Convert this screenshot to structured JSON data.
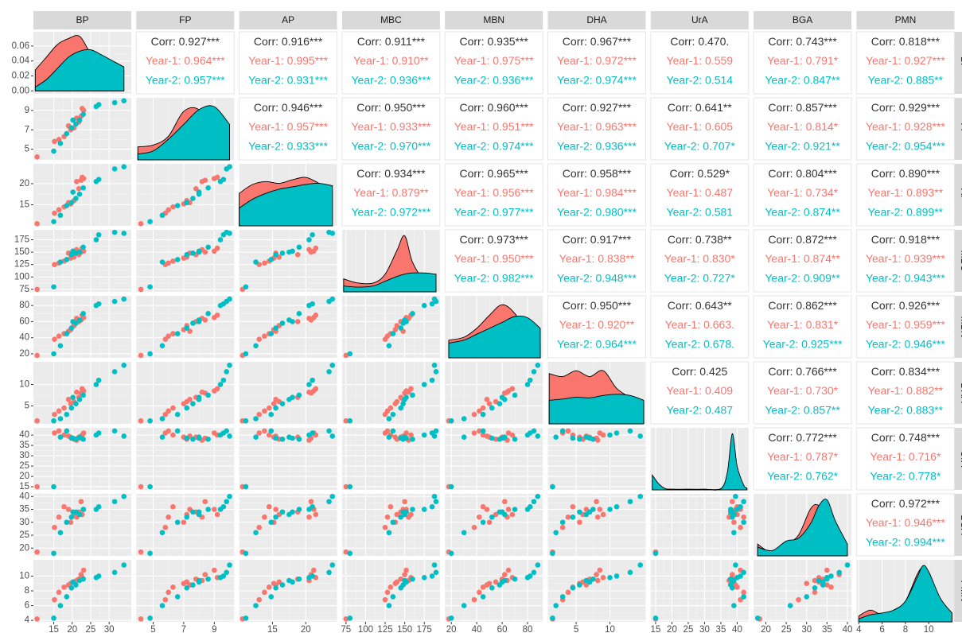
{
  "chart_data": {
    "type": "pairs",
    "colors": [
      "#F8766D",
      "#00BFC4"
    ],
    "corr_color": "#333333",
    "variables": [
      {
        "name": "BP",
        "lim": [
          9.5,
          36
        ],
        "ticks": [
          15,
          20,
          25,
          30
        ],
        "values": [
          [
            10.5,
            15.2,
            16.4,
            17.8,
            19.6,
            20.5,
            21.8,
            22.4,
            23.1,
            22.7,
            21.2,
            19.0
          ],
          [
            15.0,
            16.8,
            18.5,
            19.8,
            21.0,
            22.0,
            23.0,
            26.5,
            27.2,
            31.5,
            34.0,
            20.2
          ]
        ],
        "density": {
          "x": [
            10,
            13,
            16,
            19,
            22,
            25,
            28,
            31,
            34
          ],
          "ylim": [
            -0.004,
            0.079
          ],
          "yticks": [
            {
              "value": 0,
              "label": "0.00"
            },
            {
              "value": 0.02,
              "label": "0.02"
            },
            {
              "value": 0.04,
              "label": "0.04"
            },
            {
              "value": 0.06,
              "label": "0.06"
            }
          ],
          "values": [
            [
              0.028,
              0.045,
              0.062,
              0.07,
              0.073,
              0.05,
              0.035,
              0.03,
              0.028
            ],
            [
              0.005,
              0.015,
              0.03,
              0.045,
              0.053,
              0.055,
              0.048,
              0.04,
              0.032
            ]
          ]
        }
      },
      {
        "name": "FP",
        "lim": [
          3.9,
          10.3
        ],
        "ticks": [
          5,
          7,
          9
        ],
        "values": [
          [
            4.2,
            5.8,
            6.0,
            6.3,
            7.0,
            7.2,
            7.8,
            8.4,
            9.0,
            9.2,
            8.2,
            7.4
          ],
          [
            4.8,
            5.6,
            6.6,
            7.2,
            7.6,
            8.0,
            8.6,
            9.4,
            9.6,
            9.8,
            10.0,
            8.0
          ]
        ],
        "density": {
          "x": [
            4,
            5,
            6,
            7,
            8,
            9,
            10
          ],
          "ylim": [
            0,
            1.05
          ],
          "values": [
            [
              0.22,
              0.25,
              0.4,
              0.82,
              0.85,
              0.5,
              0.3
            ],
            [
              0.1,
              0.15,
              0.35,
              0.6,
              0.85,
              0.9,
              0.6
            ]
          ]
        }
      },
      {
        "name": "AP",
        "lim": [
          10,
          24.7
        ],
        "ticks": [
          15,
          20
        ],
        "values": [
          [
            10.5,
            13.0,
            13.8,
            14.5,
            15.2,
            16.0,
            18.8,
            20.8,
            21.2,
            21.5,
            20.5,
            15.5
          ],
          [
            11.0,
            12.5,
            14.8,
            15.5,
            16.5,
            17.5,
            19.0,
            20.5,
            21.0,
            23.5,
            24.0,
            18.0
          ]
        ],
        "density": {
          "x": [
            10,
            12,
            14,
            16,
            18,
            20,
            22,
            24
          ],
          "ylim": [
            0,
            1.05
          ],
          "values": [
            [
              0.55,
              0.7,
              0.75,
              0.72,
              0.78,
              0.82,
              0.72,
              0.6
            ],
            [
              0.3,
              0.45,
              0.55,
              0.62,
              0.66,
              0.7,
              0.72,
              0.68
            ]
          ]
        }
      },
      {
        "name": "MBC",
        "lim": [
          70,
          195
        ],
        "ticks": [
          75,
          100,
          125,
          150,
          175
        ],
        "values": [
          [
            75,
            125,
            128,
            132,
            138,
            140,
            145,
            150,
            152,
            158,
            155,
            148
          ],
          [
            80,
            130,
            135,
            145,
            148,
            150,
            160,
            175,
            185,
            190,
            188,
            152
          ]
        ],
        "density": {
          "x": [
            72,
            90,
            110,
            125,
            140,
            150,
            160,
            175,
            190
          ],
          "ylim": [
            0,
            1.05
          ],
          "values": [
            [
              0.22,
              0.15,
              0.15,
              0.3,
              0.7,
              0.95,
              0.5,
              0.2,
              0.1
            ],
            [
              0.1,
              0.08,
              0.1,
              0.18,
              0.26,
              0.3,
              0.32,
              0.32,
              0.3
            ]
          ]
        }
      },
      {
        "name": "MBN",
        "lim": [
          15,
          92
        ],
        "ticks": [
          20,
          40,
          60,
          80
        ],
        "values": [
          [
            18,
            38,
            42,
            45,
            50,
            55,
            60,
            62,
            65,
            68,
            64,
            48
          ],
          [
            20,
            30,
            45,
            52,
            58,
            62,
            70,
            80,
            82,
            85,
            88,
            60
          ]
        ],
        "density": {
          "x": [
            18,
            30,
            40,
            50,
            60,
            70,
            80,
            90
          ],
          "ylim": [
            0,
            1.05
          ],
          "values": [
            [
              0.3,
              0.35,
              0.5,
              0.72,
              0.9,
              0.75,
              0.4,
              0.2
            ],
            [
              0.25,
              0.3,
              0.4,
              0.5,
              0.6,
              0.7,
              0.68,
              0.5
            ]
          ]
        }
      },
      {
        "name": "DHA",
        "lim": [
          0.8,
          15.3
        ],
        "ticks": [
          5,
          10
        ],
        "values": [
          [
            1.5,
            3.0,
            3.8,
            4.5,
            5.5,
            6.0,
            7.0,
            8.0,
            8.5,
            9.0,
            8.2,
            6.5
          ],
          [
            1.5,
            2.0,
            3.0,
            4.5,
            5.5,
            6.5,
            7.5,
            10.0,
            11.0,
            13.0,
            14.5,
            7.0
          ]
        ],
        "density": {
          "x": [
            1,
            3,
            5,
            7,
            9,
            11,
            13,
            15
          ],
          "ylim": [
            0,
            1.05
          ],
          "values": [
            [
              0.85,
              0.8,
              0.9,
              0.8,
              0.9,
              0.6,
              0.45,
              0.35
            ],
            [
              0.4,
              0.42,
              0.45,
              0.44,
              0.48,
              0.5,
              0.48,
              0.4
            ]
          ]
        }
      },
      {
        "name": "UrA",
        "lim": [
          13.5,
          43.5
        ],
        "ticks": [
          15,
          20,
          25,
          30,
          35,
          40
        ],
        "values": [
          [
            15,
            41,
            42,
            40,
            39,
            38,
            39,
            38.5,
            41,
            40,
            37.5,
            39.5
          ],
          [
            15,
            39,
            42,
            38.5,
            38,
            39,
            38,
            40,
            41,
            42,
            39.5,
            38.5
          ]
        ],
        "density": {
          "x": [
            14,
            16,
            18,
            20,
            25,
            30,
            35,
            37,
            38.5,
            40,
            42,
            43
          ],
          "ylim": [
            0,
            1.05
          ],
          "values": [
            [
              0.15,
              0.08,
              0.02,
              0.01,
              0.01,
              0.01,
              0.02,
              0.2,
              0.85,
              0.3,
              0.05,
              0.02
            ],
            [
              0.25,
              0.1,
              0.02,
              0.01,
              0.01,
              0.01,
              0.02,
              0.3,
              0.95,
              0.4,
              0.08,
              0.03
            ]
          ]
        }
      },
      {
        "name": "BGA",
        "lim": [
          17,
          41
        ],
        "ticks": [
          20,
          25,
          30,
          35,
          40
        ],
        "values": [
          [
            18.5,
            28,
            32,
            36,
            30,
            33,
            34,
            38,
            35,
            33,
            32,
            35
          ],
          [
            18,
            26,
            30,
            32,
            34,
            33,
            35,
            35,
            36,
            38,
            40,
            34
          ]
        ],
        "density": {
          "x": [
            18,
            20,
            22,
            25,
            28,
            31,
            33,
            35,
            37,
            40
          ],
          "ylim": [
            0,
            1.05
          ],
          "values": [
            [
              0.2,
              0.1,
              0.08,
              0.2,
              0.35,
              0.8,
              0.85,
              0.6,
              0.3,
              0.1
            ],
            [
              0.15,
              0.1,
              0.1,
              0.25,
              0.3,
              0.55,
              0.85,
              0.95,
              0.6,
              0.2
            ]
          ]
        }
      },
      {
        "name": "PMN",
        "lim": [
          3.8,
          12.2
        ],
        "ticks": [
          4,
          6,
          8,
          10
        ],
        "values": [
          [
            4.2,
            6.8,
            7.8,
            8.5,
            9.0,
            9.2,
            9.6,
            10.2,
            10.8,
            9.8,
            9.4,
            8.8
          ],
          [
            4.3,
            6.0,
            7.2,
            8.4,
            8.8,
            9.4,
            9.6,
            9.8,
            10.0,
            10.5,
            11.5,
            9.2
          ]
        ],
        "density": {
          "x": [
            4,
            5,
            6,
            7,
            8,
            9,
            9.5,
            10,
            11,
            12
          ],
          "ylim": [
            0,
            1.05
          ],
          "values": [
            [
              0.1,
              0.2,
              0.12,
              0.2,
              0.35,
              0.8,
              0.92,
              0.8,
              0.35,
              0.1
            ],
            [
              0.05,
              0.12,
              0.15,
              0.2,
              0.35,
              0.75,
              0.95,
              0.85,
              0.4,
              0.15
            ]
          ]
        }
      }
    ],
    "correlations": [
      [
        [
          "Corr: 0.927***",
          "Year-1: 0.964***",
          "Year-2: 0.957***"
        ],
        [
          "Corr: 0.916***",
          "Year-1: 0.995***",
          "Year-2: 0.931***"
        ],
        [
          "Corr: 0.911***",
          "Year-1: 0.910**",
          "Year-2: 0.936***"
        ],
        [
          "Corr: 0.935***",
          "Year-1: 0.975***",
          "Year-2: 0.936***"
        ],
        [
          "Corr: 0.967***",
          "Year-1: 0.972***",
          "Year-2: 0.974***"
        ],
        [
          "Corr: 0.470.",
          "Year-1: 0.559",
          "Year-2: 0.514"
        ],
        [
          "Corr: 0.743***",
          "Year-1: 0.791*",
          "Year-2: 0.847**"
        ],
        [
          "Corr: 0.818***",
          "Year-1: 0.927***",
          "Year-2: 0.885**"
        ]
      ],
      [
        [
          "Corr: 0.946***",
          "Year-1: 0.957***",
          "Year-2: 0.933***"
        ],
        [
          "Corr: 0.950***",
          "Year-1: 0.933***",
          "Year-2: 0.970***"
        ],
        [
          "Corr: 0.960***",
          "Year-1: 0.951***",
          "Year-2: 0.974***"
        ],
        [
          "Corr: 0.927***",
          "Year-1: 0.963***",
          "Year-2: 0.936***"
        ],
        [
          "Corr: 0.641**",
          "Year-1: 0.605",
          "Year-2: 0.707*"
        ],
        [
          "Corr: 0.857***",
          "Year-1: 0.814*",
          "Year-2: 0.921**"
        ],
        [
          "Corr: 0.929***",
          "Year-1: 0.928***",
          "Year-2: 0.954***"
        ]
      ],
      [
        [
          "Corr: 0.934***",
          "Year-1: 0.879**",
          "Year-2: 0.972***"
        ],
        [
          "Corr: 0.965***",
          "Year-1: 0.956***",
          "Year-2: 0.977***"
        ],
        [
          "Corr: 0.958***",
          "Year-1: 0.984***",
          "Year-2: 0.980***"
        ],
        [
          "Corr: 0.529*",
          "Year-1: 0.487",
          "Year-2: 0.581"
        ],
        [
          "Corr: 0.804***",
          "Year-1: 0.734*",
          "Year-2: 0.874**"
        ],
        [
          "Corr: 0.890***",
          "Year-1: 0.893**",
          "Year-2: 0.899**"
        ]
      ],
      [
        [
          "Corr: 0.973***",
          "Year-1: 0.950***",
          "Year-2: 0.982***"
        ],
        [
          "Corr: 0.917***",
          "Year-1: 0.838**",
          "Year-2: 0.948***"
        ],
        [
          "Corr: 0.738**",
          "Year-1: 0.830*",
          "Year-2: 0.727*"
        ],
        [
          "Corr: 0.872***",
          "Year-1: 0.874**",
          "Year-2: 0.909**"
        ],
        [
          "Corr: 0.918***",
          "Year-1: 0.939***",
          "Year-2: 0.943***"
        ]
      ],
      [
        [
          "Corr: 0.950***",
          "Year-1: 0.920**",
          "Year-2: 0.964***"
        ],
        [
          "Corr: 0.643**",
          "Year-1: 0.663.",
          "Year-2: 0.678."
        ],
        [
          "Corr: 0.862***",
          "Year-1: 0.831*",
          "Year-2: 0.925***"
        ],
        [
          "Corr: 0.926***",
          "Year-1: 0.959***",
          "Year-2: 0.946***"
        ]
      ],
      [
        [
          "Corr: 0.425",
          "Year-1: 0.409",
          "Year-2: 0.487"
        ],
        [
          "Corr: 0.766***",
          "Year-1: 0.730*",
          "Year-2: 0.857**"
        ],
        [
          "Corr: 0.834***",
          "Year-1: 0.882**",
          "Year-2: 0.883**"
        ]
      ],
      [
        [
          "Corr: 0.772***",
          "Year-1: 0.787*",
          "Year-2: 0.762*"
        ],
        [
          "Corr: 0.748***",
          "Year-1: 0.716*",
          "Year-2: 0.778*"
        ]
      ],
      [
        [
          "Corr: 0.972***",
          "Year-1: 0.946***",
          "Year-2: 0.994***"
        ]
      ]
    ]
  }
}
